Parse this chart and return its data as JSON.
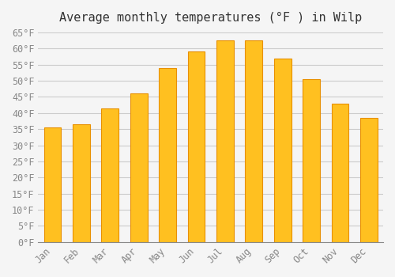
{
  "title": "Average monthly temperatures (°F ) in Wilp",
  "months": [
    "Jan",
    "Feb",
    "Mar",
    "Apr",
    "May",
    "Jun",
    "Jul",
    "Aug",
    "Sep",
    "Oct",
    "Nov",
    "Dec"
  ],
  "values": [
    35.5,
    36.5,
    41.5,
    46.0,
    54.0,
    59.0,
    62.5,
    62.5,
    57.0,
    50.5,
    43.0,
    38.5
  ],
  "bar_color": "#FFC020",
  "bar_edge_color": "#E89000",
  "background_color": "#F5F5F5",
  "grid_color": "#CCCCCC",
  "text_color": "#888888",
  "ylim": [
    0,
    65
  ],
  "yticks": [
    0,
    5,
    10,
    15,
    20,
    25,
    30,
    35,
    40,
    45,
    50,
    55,
    60,
    65
  ],
  "title_fontsize": 11,
  "tick_fontsize": 8.5
}
